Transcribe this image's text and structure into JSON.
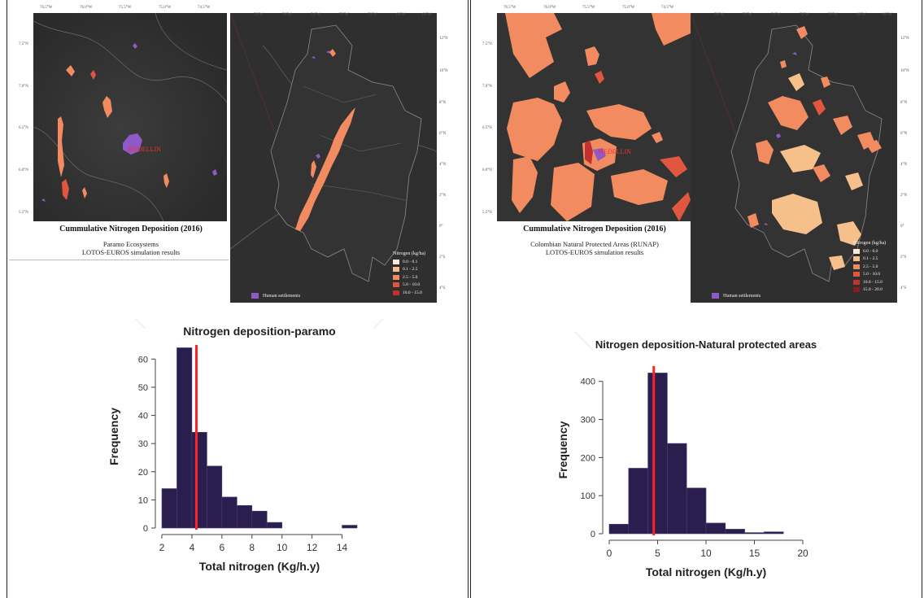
{
  "colors": {
    "map_bg": "#303030",
    "map_outline": "#8a8a8a",
    "settlement": "#8e5ac8",
    "bar_fill": "#2a1e4e",
    "mean_line": "#ff2222",
    "deposition_ramp": [
      "#fbe9d4",
      "#f6c08a",
      "#f28c60",
      "#e0563e",
      "#c23030",
      "#8c1a1a"
    ]
  },
  "left": {
    "inset_map": {
      "top_ticks": [
        "76.5°W",
        "76.0°W",
        "75.5°W",
        "75.0°W",
        "74.5°W"
      ],
      "left_ticks": [
        "7.5°N",
        "7.0°N",
        "6.5°N",
        "6.0°N",
        "5.5°N"
      ],
      "city_label": "MEDELLIN",
      "title": "Cummulative Nitrogen Deposition (2016)",
      "subtitle_lines": [
        "Paramo Ecosystems",
        "LOTOS-EUROS simulation results"
      ]
    },
    "country_map": {
      "top_ticks": [
        "78°W",
        "76°W",
        "74°W",
        "72°W",
        "70°W",
        "68°W",
        "66°W"
      ],
      "right_ticks": [
        "12°N",
        "10°N",
        "8°N",
        "6°N",
        "4°N",
        "2°N",
        "0°",
        "2°S",
        "4°S"
      ],
      "legend_title": "Nitrogen (kg/ha)",
      "legend_items": [
        "0.0 - 0.1",
        "0.1 - 2.5",
        "2.5 - 5.0",
        "5.0 - 10.0",
        "10.0 - 15.0"
      ],
      "settlements_label": "Human settlements"
    },
    "histogram": {
      "title": "Nitrogen deposition-paramo",
      "xlabel": "Total nitrogen (Kg/h.y)",
      "ylabel": "Frequency",
      "x_ticks": [
        "2",
        "4",
        "6",
        "8",
        "10",
        "12",
        "14"
      ],
      "y_ticks": [
        "0",
        "10",
        "20",
        "30",
        "40",
        "50",
        "60"
      ]
    }
  },
  "right": {
    "inset_map": {
      "top_ticks": [
        "76.5°W",
        "76.0°W",
        "75.5°W",
        "75.0°W",
        "74.5°W"
      ],
      "left_ticks": [
        "7.5°N",
        "7.0°N",
        "6.5°N",
        "6.0°N",
        "5.5°N"
      ],
      "city_label": "MEDELLIN",
      "title": "Cummulative Nitrogen Deposition (2016)",
      "subtitle_lines": [
        "Colombian Natural Protected Areas (RUNAP)",
        "LOTOS-EUROS simulation results"
      ]
    },
    "country_map": {
      "top_ticks": [
        "78°W",
        "76°W",
        "74°W",
        "72°W",
        "70°W",
        "68°W",
        "66°W"
      ],
      "right_ticks": [
        "12°N",
        "10°N",
        "8°N",
        "6°N",
        "4°N",
        "2°N",
        "0°",
        "2°S",
        "4°S"
      ],
      "legend_title": "Nitrogen (kg/ha)",
      "legend_items": [
        "0.0 - 0.0",
        "0.1 - 2.5",
        "2.5 - 5.0",
        "5.0 - 10.0",
        "10.0 - 15.0",
        "15.0 - 20.0"
      ],
      "settlements_label": "Human settlements"
    },
    "histogram": {
      "title": "Nitrogen deposition-Natural protected areas",
      "xlabel": "Total nitrogen (Kg/h.y)",
      "ylabel": "Frequency",
      "x_ticks": [
        "0",
        "5",
        "10",
        "15",
        "20"
      ],
      "y_ticks": [
        "0",
        "100",
        "200",
        "300",
        "400"
      ]
    }
  },
  "chart_data": [
    {
      "type": "bar",
      "title": "Nitrogen deposition-paramo",
      "xlabel": "Total nitrogen (Kg/h.y)",
      "ylabel": "Frequency",
      "bin_edges": [
        2,
        3,
        4,
        5,
        6,
        7,
        8,
        9,
        10,
        11,
        12,
        13,
        14,
        15
      ],
      "values": [
        14,
        64,
        34,
        22,
        11,
        8,
        6,
        2,
        0,
        0,
        0,
        0,
        1
      ],
      "xlim": [
        2,
        15
      ],
      "ylim": [
        0,
        65
      ],
      "mean_line_x": 4.3
    },
    {
      "type": "bar",
      "title": "Nitrogen deposition-Natural protected areas",
      "xlabel": "Total nitrogen (Kg/h.y)",
      "ylabel": "Frequency",
      "bin_edges": [
        0,
        2,
        4,
        6,
        8,
        10,
        12,
        14,
        16,
        18,
        20
      ],
      "values": [
        25,
        172,
        422,
        237,
        120,
        28,
        12,
        3,
        5,
        0
      ],
      "xlim": [
        0,
        20
      ],
      "ylim": [
        0,
        440
      ],
      "mean_line_x": 4.6
    }
  ]
}
